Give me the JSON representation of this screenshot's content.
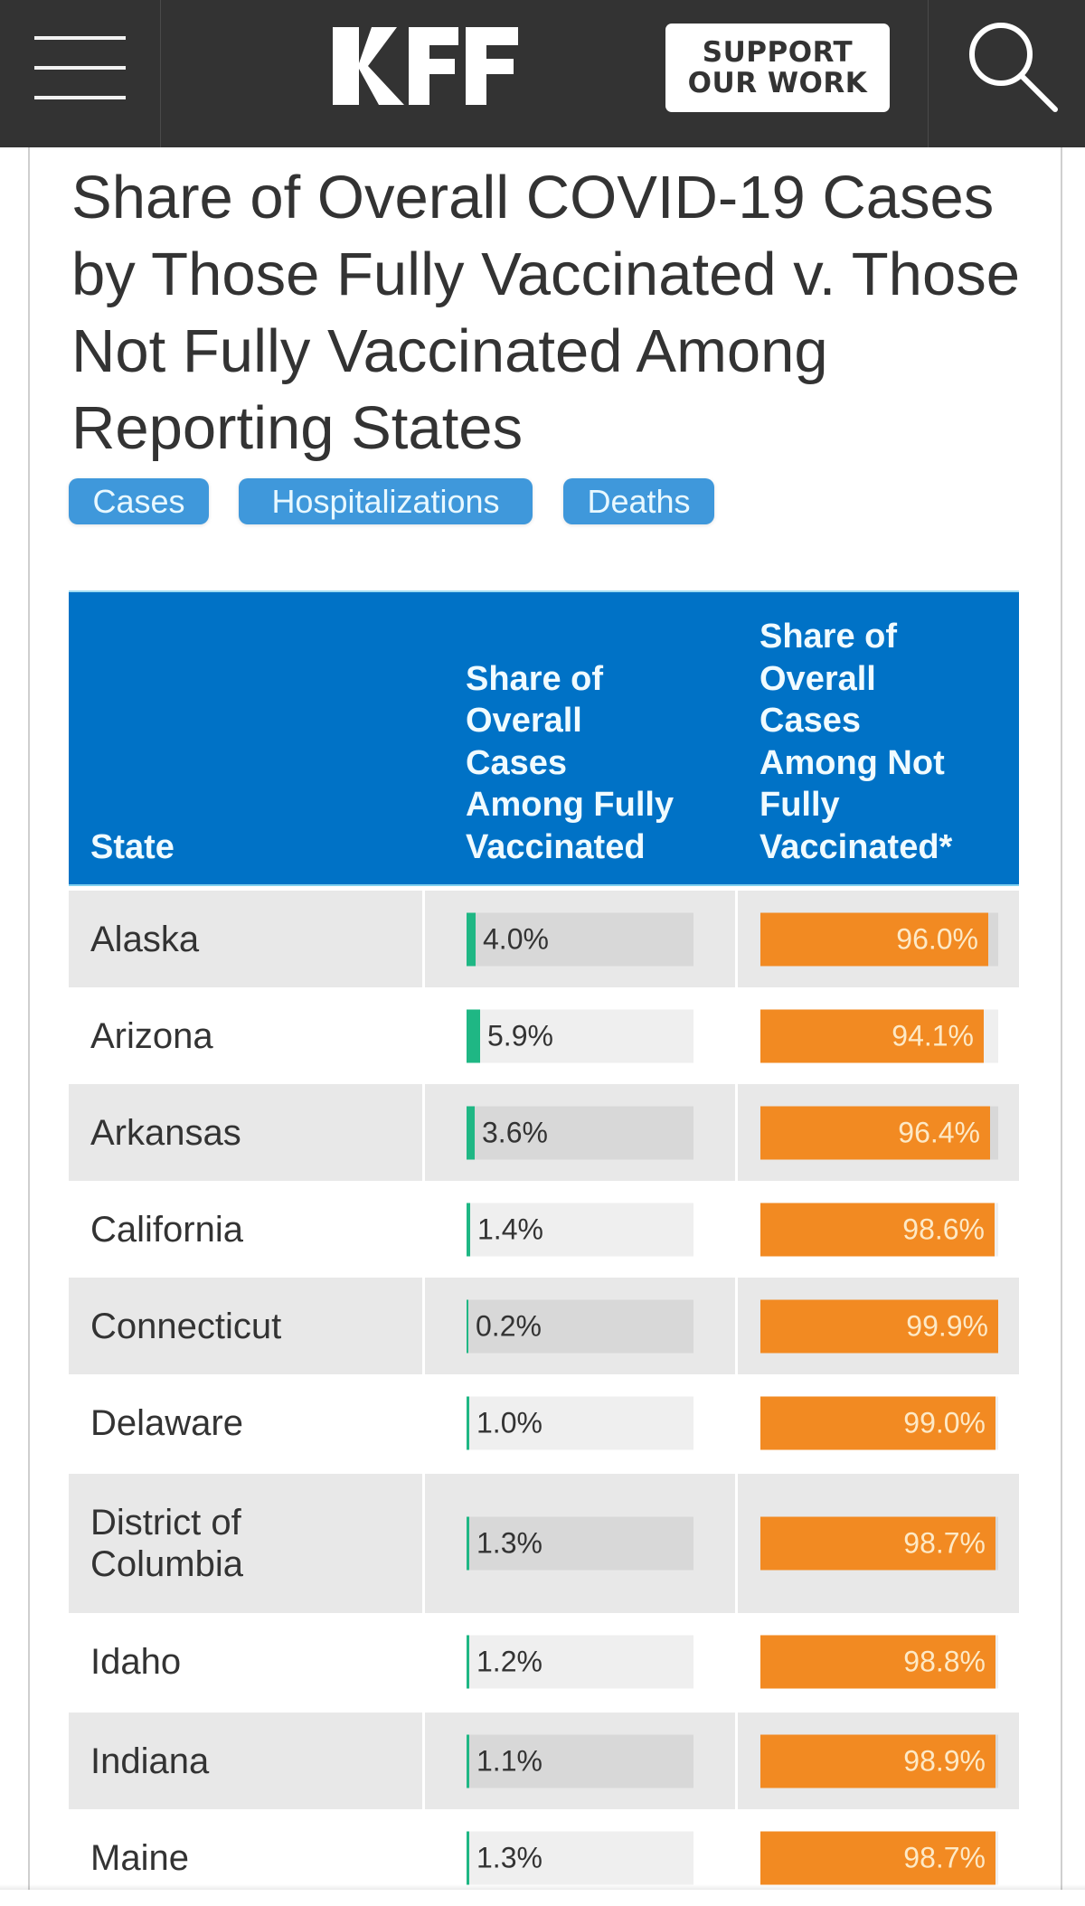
{
  "header": {
    "logo_text": "KFF",
    "support_line1": "SUPPORT",
    "support_line2": "OUR WORK",
    "menu_icon": "hamburger-menu-icon",
    "search_icon": "search-icon"
  },
  "title": "Share of Overall COVID-19 Cases by Those Fully Vaccinated v. Those Not Fully Vaccinated Among Reporting States",
  "tabs": [
    {
      "label": "Cases"
    },
    {
      "label": "Hospitalizations"
    },
    {
      "label": "Deaths"
    }
  ],
  "colors": {
    "header_bg": "#333333",
    "table_header": "#0072c6",
    "pill": "#3f98db",
    "vaccinated_bar": "#1fb784",
    "not_vaccinated_bar": "#f28a22"
  },
  "table": {
    "columns": [
      {
        "label": "State"
      },
      {
        "label": "Share of Overall Cases Among Fully Vaccinated"
      },
      {
        "label": "Share of Overall Cases Among Not Fully Vaccinated*"
      }
    ],
    "rows": [
      {
        "state": "Alaska",
        "vaccinated": 4.0,
        "vaccinated_label": "4.0%",
        "not_vaccinated": 96.0,
        "not_vaccinated_label": "96.0%"
      },
      {
        "state": "Arizona",
        "vaccinated": 5.9,
        "vaccinated_label": "5.9%",
        "not_vaccinated": 94.1,
        "not_vaccinated_label": "94.1%"
      },
      {
        "state": "Arkansas",
        "vaccinated": 3.6,
        "vaccinated_label": "3.6%",
        "not_vaccinated": 96.4,
        "not_vaccinated_label": "96.4%"
      },
      {
        "state": "California",
        "vaccinated": 1.4,
        "vaccinated_label": "1.4%",
        "not_vaccinated": 98.6,
        "not_vaccinated_label": "98.6%"
      },
      {
        "state": "Connecticut",
        "vaccinated": 0.2,
        "vaccinated_label": "0.2%",
        "not_vaccinated": 99.9,
        "not_vaccinated_label": "99.9%"
      },
      {
        "state": "Delaware",
        "vaccinated": 1.0,
        "vaccinated_label": "1.0%",
        "not_vaccinated": 99.0,
        "not_vaccinated_label": "99.0%"
      },
      {
        "state": "District of Columbia",
        "vaccinated": 1.3,
        "vaccinated_label": "1.3%",
        "not_vaccinated": 98.7,
        "not_vaccinated_label": "98.7%"
      },
      {
        "state": "Idaho",
        "vaccinated": 1.2,
        "vaccinated_label": "1.2%",
        "not_vaccinated": 98.8,
        "not_vaccinated_label": "98.8%"
      },
      {
        "state": "Indiana",
        "vaccinated": 1.1,
        "vaccinated_label": "1.1%",
        "not_vaccinated": 98.9,
        "not_vaccinated_label": "98.9%"
      },
      {
        "state": "Maine",
        "vaccinated": 1.3,
        "vaccinated_label": "1.3%",
        "not_vaccinated": 98.7,
        "not_vaccinated_label": "98.7%"
      }
    ]
  }
}
